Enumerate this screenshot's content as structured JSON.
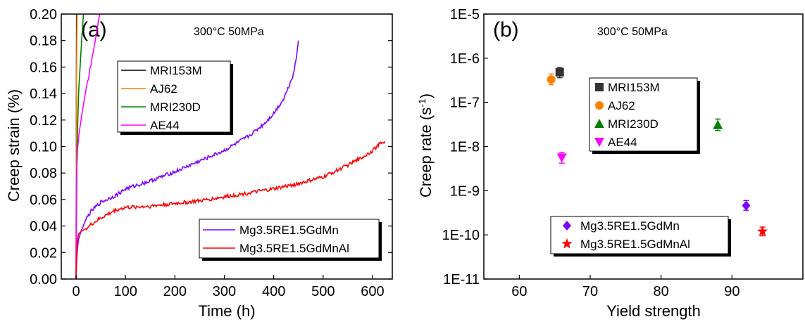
{
  "chart_data": [
    {
      "type": "line",
      "panel_label": "(a)",
      "condition": "300°C 50MPa",
      "xlabel": "Time (h)",
      "ylabel": "Creep strain (%)",
      "xlim": [
        -30,
        640
      ],
      "ylim": [
        0.0,
        0.2
      ],
      "x_ticks": [
        "0",
        "100",
        "200",
        "300",
        "400",
        "500",
        "600"
      ],
      "y_ticks": [
        "0.00",
        "0.02",
        "0.04",
        "0.06",
        "0.08",
        "0.10",
        "0.12",
        "0.14",
        "0.16",
        "0.18",
        "0.20"
      ],
      "legend_top": [
        "MRI153M",
        "AJ62",
        "MRI230D",
        "AE44"
      ],
      "legend_bottom": [
        "Mg3.5RE1.5GdMn",
        "Mg3.5RE1.5GdMnAl"
      ],
      "series": [
        {
          "name": "MRI153M",
          "color": "#000000",
          "x": [
            0,
            0.3,
            0.6,
            1.0
          ],
          "y": [
            0.0,
            0.07,
            0.15,
            0.2
          ]
        },
        {
          "name": "AJ62",
          "color": "#ff8000",
          "x": [
            0,
            0.5,
            1.0,
            1.5,
            2.0
          ],
          "y": [
            0.0,
            0.09,
            0.15,
            0.18,
            0.2
          ]
        },
        {
          "name": "MRI230D",
          "color": "#008000",
          "x": [
            0,
            2,
            5,
            8,
            12,
            15
          ],
          "y": [
            0.0,
            0.1,
            0.14,
            0.16,
            0.185,
            0.2
          ]
        },
        {
          "name": "AE44",
          "color": "#ff00ff",
          "x": [
            0,
            0.5,
            3,
            6,
            10,
            15,
            20,
            25,
            30,
            35,
            40,
            45,
            48
          ],
          "y": [
            0.0,
            0.075,
            0.098,
            0.11,
            0.12,
            0.132,
            0.143,
            0.152,
            0.162,
            0.172,
            0.183,
            0.194,
            0.2
          ]
        },
        {
          "name": "Mg3.5RE1.5GdMn",
          "color": "#7f00ff",
          "x": [
            0,
            1,
            3,
            5,
            10,
            20,
            30,
            50,
            80,
            100,
            150,
            200,
            250,
            300,
            350,
            380,
            400,
            420,
            430,
            440,
            445,
            450
          ],
          "y": [
            0.0,
            0.012,
            0.024,
            0.03,
            0.036,
            0.045,
            0.051,
            0.058,
            0.063,
            0.068,
            0.074,
            0.081,
            0.089,
            0.097,
            0.108,
            0.117,
            0.125,
            0.136,
            0.145,
            0.155,
            0.165,
            0.18
          ]
        },
        {
          "name": "Mg3.5RE1.5GdMnAl",
          "color": "#ff0000",
          "x": [
            0,
            1,
            3,
            5,
            10,
            20,
            30,
            50,
            80,
            100,
            150,
            200,
            250,
            300,
            350,
            400,
            450,
            500,
            550,
            580,
            600,
            615,
            625
          ],
          "y": [
            0.0,
            0.02,
            0.03,
            0.034,
            0.036,
            0.038,
            0.041,
            0.046,
            0.052,
            0.054,
            0.055,
            0.057,
            0.059,
            0.062,
            0.065,
            0.068,
            0.072,
            0.077,
            0.086,
            0.092,
            0.097,
            0.102,
            0.104
          ]
        }
      ]
    },
    {
      "type": "scatter",
      "panel_label": "(b)",
      "condition": "300°C 50MPa",
      "xlabel": "Yield strength",
      "ylabel": "Creep rate (s",
      "ylabel_sup": "-1",
      "ylabel_end": ")",
      "ylog": true,
      "xlim": [
        55,
        100
      ],
      "ylim": [
        1e-11,
        1e-05
      ],
      "x_ticks": [
        "60",
        "70",
        "80",
        "90"
      ],
      "y_ticks": [
        "1E-11",
        "1E-10",
        "1E-9",
        "1E-8",
        "1E-7",
        "1E-6",
        "1E-5"
      ],
      "legend_top": [
        "MRI153M",
        "AJ62",
        "MRI230D",
        "AE44"
      ],
      "legend_bottom": [
        "Mg3.5RE1.5GdMn",
        "Mg3.5RE1.5GdMnAl"
      ],
      "points": [
        {
          "name": "MRI153M",
          "marker": "square",
          "color": "#333333",
          "x": 65.7,
          "y": 4.8e-07,
          "err_lo": 3.6e-07,
          "err_hi": 6.2e-07
        },
        {
          "name": "AJ62",
          "marker": "circle",
          "color": "#ff8000",
          "x": 64.5,
          "y": 3.3e-07,
          "err_lo": 2.5e-07,
          "err_hi": 4.4e-07
        },
        {
          "name": "MRI230D",
          "marker": "triangle-up",
          "color": "#008000",
          "x": 88.0,
          "y": 3.1e-08,
          "err_lo": 2.3e-08,
          "err_hi": 4.2e-08
        },
        {
          "name": "AE44",
          "marker": "triangle-down",
          "color": "#ff00ff",
          "x": 66.0,
          "y": 5.6e-09,
          "err_lo": 4.2e-09,
          "err_hi": 7.4e-09
        },
        {
          "name": "Mg3.5RE1.5GdMn",
          "marker": "diamond",
          "color": "#7f00ff",
          "x": 92.0,
          "y": 4.6e-10,
          "err_lo": 3.6e-10,
          "err_hi": 6e-10
        },
        {
          "name": "Mg3.5RE1.5GdMnAl",
          "marker": "star",
          "color": "#ff0000",
          "x": 94.3,
          "y": 1.2e-10,
          "err_lo": 9.5e-11,
          "err_hi": 1.5e-10
        }
      ]
    }
  ]
}
